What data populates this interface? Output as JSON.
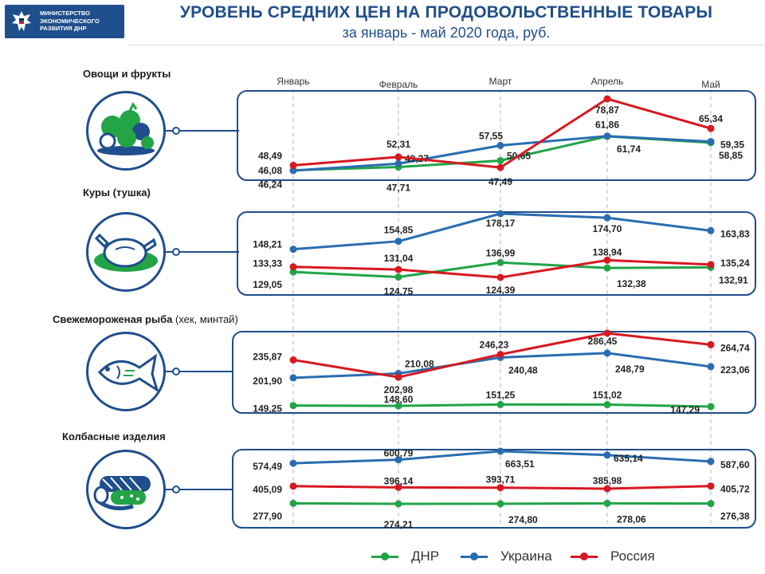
{
  "header": {
    "logo_lines": [
      "МИНИСТЕРСТВО",
      "ЭКОНОМИЧЕСКОГО",
      "РАЗВИТИЯ ДНР"
    ],
    "title": "УРОВЕНЬ СРЕДНИХ ЦЕН НА ПРОДОВОЛЬСТВЕННЫЕ ТОВАРЫ",
    "subtitle": "за январь - май 2020 года, руб."
  },
  "colors": {
    "dnr": "#22a447",
    "ukraine": "#2a6db0",
    "russia": "#d71920",
    "frame": "#1f4e8c"
  },
  "icons": [
    "vegetables-fruits-icon",
    "chicken-icon",
    "fish-icon",
    "sausage-icon"
  ],
  "panels": [
    {
      "label": "Овощи и фрукты",
      "label_extra": ""
    },
    {
      "label": "Куры (тушка)",
      "label_extra": ""
    },
    {
      "label": "Свежемороженая рыба",
      "label_extra": " (хек, минтай)"
    },
    {
      "label": "Колбасные изделия",
      "label_extra": ""
    }
  ],
  "legend": [
    {
      "key": "dnr",
      "label": "ДНР"
    },
    {
      "key": "ukraine",
      "label": "Украина"
    },
    {
      "key": "russia",
      "label": "Россия"
    }
  ],
  "chart_data": [
    {
      "type": "line",
      "title": "Овощи и фрукты",
      "categories": [
        "Январь",
        "Февраль",
        "Март",
        "Апрель",
        "Май"
      ],
      "series": [
        {
          "name": "ДНР",
          "values": [
            46.24,
            47.71,
            50.65,
            61.74,
            58.85
          ],
          "label_strings": [
            "46,24",
            "47,71",
            "50,65",
            "61,74",
            "58,85"
          ]
        },
        {
          "name": "Украина",
          "values": [
            46.08,
            49.27,
            57.55,
            61.86,
            59.35
          ],
          "label_strings": [
            "46,08",
            "49,27",
            "57,55",
            "61,86",
            "59,35"
          ]
        },
        {
          "name": "Россия",
          "values": [
            48.49,
            52.31,
            47.49,
            78.87,
            65.34
          ],
          "label_strings": [
            "48,49",
            "52,31",
            "47,49",
            "78,87",
            "65,34"
          ]
        }
      ]
    },
    {
      "type": "line",
      "title": "Куры (тушка)",
      "categories": [
        "Январь",
        "Февраль",
        "Март",
        "Апрель",
        "Май"
      ],
      "series": [
        {
          "name": "ДНР",
          "values": [
            129.05,
            124.75,
            136.99,
            132.38,
            132.91
          ],
          "label_strings": [
            "129,05",
            "124,75",
            "136,99",
            "132,38",
            "132,91"
          ]
        },
        {
          "name": "Украина",
          "values": [
            148.21,
            154.85,
            178.17,
            174.7,
            163.83
          ],
          "label_strings": [
            "148,21",
            "154,85",
            "178,17",
            "174,70",
            "163,83"
          ]
        },
        {
          "name": "Россия",
          "values": [
            133.33,
            131.04,
            124.39,
            138.94,
            135.24
          ],
          "label_strings": [
            "133,33",
            "131,04",
            "124,39",
            "138,94",
            "135,24"
          ]
        }
      ]
    },
    {
      "type": "line",
      "title": "Свежемороженая рыба (хек, минтай)",
      "categories": [
        "Январь",
        "Февраль",
        "Март",
        "Апрель",
        "Май"
      ],
      "series": [
        {
          "name": "ДНР",
          "values": [
            149.25,
            148.6,
            151.25,
            151.02,
            147.29
          ],
          "label_strings": [
            "149,25",
            "148,60",
            "151,25",
            "151,02",
            "147,29"
          ]
        },
        {
          "name": "Украина",
          "values": [
            201.9,
            210.08,
            240.48,
            248.79,
            223.06
          ],
          "label_strings": [
            "201,90",
            "210,08",
            "240,48",
            "248,79",
            "223,06"
          ]
        },
        {
          "name": "Россия",
          "values": [
            235.87,
            202.98,
            246.23,
            286.45,
            264.74
          ],
          "label_strings": [
            "235,87",
            "202,98",
            "246,23",
            "286,45",
            "264,74"
          ]
        }
      ]
    },
    {
      "type": "line",
      "title": "Колбасные изделия",
      "categories": [
        "Январь",
        "Февраль",
        "Март",
        "Апрель",
        "Май"
      ],
      "series": [
        {
          "name": "ДНР",
          "values": [
            277.9,
            274.21,
            274.8,
            278.06,
            276.38
          ],
          "label_strings": [
            "277,90",
            "274,21",
            "274,80",
            "278,06",
            "276,38"
          ]
        },
        {
          "name": "Украина",
          "values": [
            574.49,
            600.79,
            663.51,
            635.14,
            587.6
          ],
          "label_strings": [
            "574,49",
            "600,79",
            "663,51",
            "635,14",
            "587,60"
          ]
        },
        {
          "name": "Россия",
          "values": [
            405.09,
            396.14,
            393.71,
            385.98,
            405.72
          ],
          "label_strings": [
            "405,09",
            "396,14",
            "393,71",
            "385,98",
            "405,72"
          ]
        }
      ]
    }
  ]
}
